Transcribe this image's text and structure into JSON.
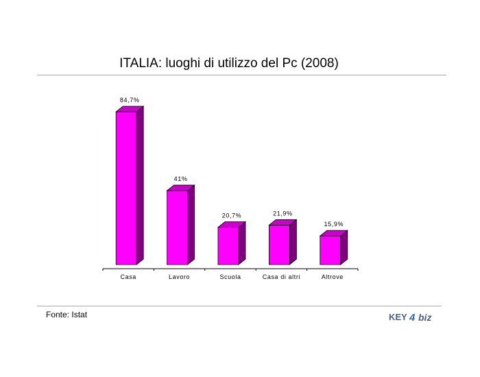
{
  "title": "ITALIA: luoghi di utilizzo del Pc (2008)",
  "source": "Fonte: Istat",
  "logo": {
    "text_left": "KEY",
    "digit": "4",
    "text_right": "biz",
    "color_main": "#4a5f8a",
    "color_accent": "#2f6bb3"
  },
  "colors": {
    "bar_front": "#ff00ff",
    "bar_top": "#cc00cc",
    "bar_side": "#800080",
    "rule": "#a6a6a6"
  },
  "chart_data": {
    "type": "bar",
    "title": "ITALIA: luoghi di utilizzo del Pc (2008)",
    "categories": [
      "Casa",
      "Lavoro",
      "Scuola",
      "Casa di altri",
      "Altrove"
    ],
    "values": [
      84.7,
      41,
      20.7,
      21.9,
      15.9
    ],
    "value_labels": [
      "84,7%",
      "41%",
      "20,7%",
      "21,9%",
      "15,9%"
    ],
    "xlabel": "",
    "ylabel": "",
    "ylim": [
      0,
      84.7
    ],
    "grid": false,
    "legend": "none",
    "style": "3d-column"
  }
}
